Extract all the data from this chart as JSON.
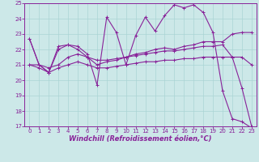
{
  "bg_color": "#cce8e8",
  "grid_color": "#aad4d4",
  "line_color": "#882299",
  "xlabel": "Windchill (Refroidissement éolien,°C)",
  "ylim": [
    17,
    25
  ],
  "xlim": [
    -0.5,
    23.5
  ],
  "yticks": [
    17,
    18,
    19,
    20,
    21,
    22,
    23,
    24,
    25
  ],
  "xticks": [
    0,
    1,
    2,
    3,
    4,
    5,
    6,
    7,
    8,
    9,
    10,
    11,
    12,
    13,
    14,
    15,
    16,
    17,
    18,
    19,
    20,
    21,
    22,
    23
  ],
  "x": [
    0,
    1,
    2,
    3,
    4,
    5,
    6,
    7,
    8,
    9,
    10,
    11,
    12,
    13,
    14,
    15,
    16,
    17,
    18,
    19,
    20,
    21,
    22,
    23
  ],
  "line1": [
    22.7,
    21.0,
    20.5,
    22.2,
    22.3,
    22.2,
    21.7,
    19.7,
    24.1,
    23.1,
    21.0,
    22.9,
    24.1,
    23.2,
    24.2,
    24.9,
    24.7,
    24.9,
    24.4,
    23.1,
    19.3,
    17.5,
    17.3,
    16.9
  ],
  "line2": [
    22.7,
    21.0,
    20.5,
    22.0,
    22.3,
    22.0,
    21.5,
    21.0,
    21.2,
    21.3,
    21.5,
    21.7,
    21.8,
    22.0,
    22.1,
    22.0,
    22.2,
    22.3,
    22.5,
    22.5,
    22.5,
    23.0,
    23.1,
    23.1
  ],
  "line3": [
    21.0,
    21.0,
    20.8,
    21.0,
    21.5,
    21.7,
    21.5,
    21.3,
    21.3,
    21.4,
    21.5,
    21.6,
    21.7,
    21.8,
    21.9,
    21.9,
    22.0,
    22.1,
    22.2,
    22.2,
    22.3,
    21.5,
    19.5,
    17.0
  ],
  "line4": [
    21.0,
    20.8,
    20.5,
    20.8,
    21.0,
    21.2,
    21.0,
    20.8,
    20.8,
    20.9,
    21.0,
    21.1,
    21.2,
    21.2,
    21.3,
    21.3,
    21.4,
    21.4,
    21.5,
    21.5,
    21.5,
    21.5,
    21.5,
    21.0
  ],
  "marker": "+",
  "markersize": 3,
  "linewidth": 0.8,
  "tick_fontsize": 5,
  "label_fontsize": 6
}
